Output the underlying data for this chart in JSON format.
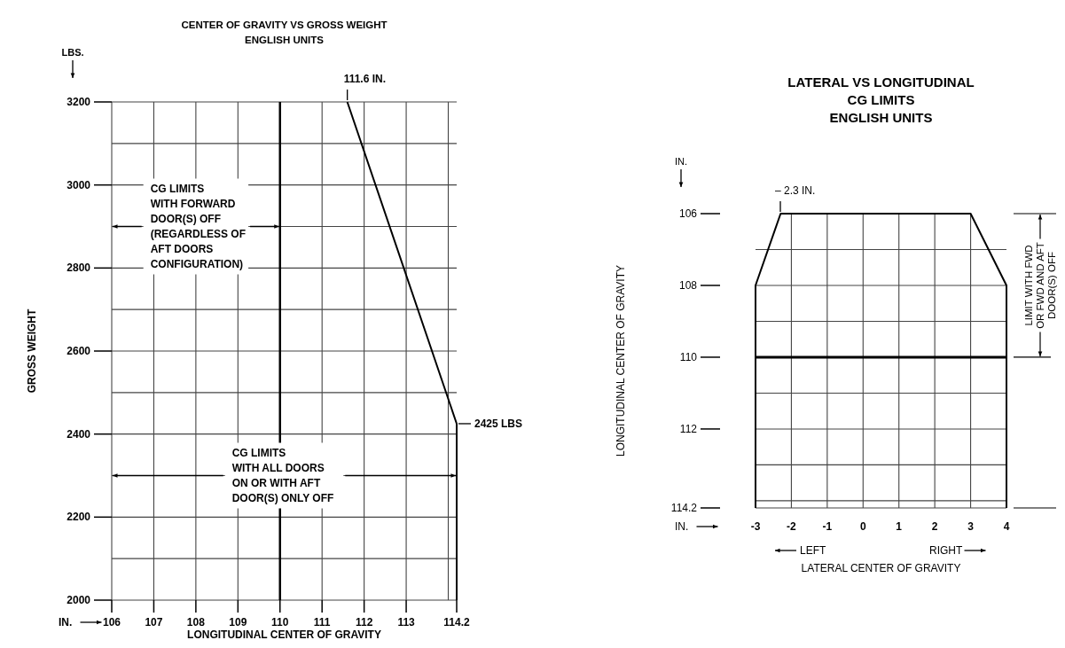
{
  "chart_data": [
    {
      "type": "line",
      "title": "CENTER OF GRAVITY VS GROSS WEIGHT",
      "subtitle": "ENGLISH UNITS",
      "xlabel": "LONGITUDINAL CENTER OF GRAVITY",
      "ylabel": "GROSS WEIGHT",
      "xlim": [
        106,
        114.2
      ],
      "xticks": [
        106,
        107,
        108,
        109,
        110,
        111,
        112,
        113,
        {
          "value": 114,
          "label": null
        },
        114.2
      ],
      "ylim": [
        2000,
        3200
      ],
      "yticks": [
        2000,
        {
          "value": 2100,
          "label": null
        },
        2200,
        {
          "value": 2300,
          "label": null
        },
        2400,
        {
          "value": 2500,
          "label": null
        },
        2600,
        {
          "value": 2700,
          "label": null
        },
        2800,
        {
          "value": 2900,
          "label": null
        },
        3000,
        {
          "value": 3100,
          "label": null
        },
        3200
      ],
      "grid": true,
      "line_style": "solid",
      "series": [
        {
          "color": "#000000",
          "x": [
            111.6,
            114.2,
            114.2
          ],
          "values": [
            3200,
            2425,
            2000
          ]
        }
      ],
      "ref_lines": [
        {
          "axis": "x",
          "value": 110,
          "color": "#000000"
        }
      ],
      "annotations": [
        {
          "text": "111.6 IN.",
          "x": 111.6,
          "y": 3200
        },
        {
          "text": "2425 LBS",
          "x": 114.2,
          "y": 2425
        },
        "LBS.",
        "IN.",
        {
          "text": "CG LIMITS\nWITH FORWARD\nDOOR(S) OFF\n(REGARDLESS OF\nAFT DOORS\nCONFIGURATION)",
          "x": 110,
          "y": 2900
        },
        {
          "text": "CG LIMITS\nWITH ALL DOORS\nON OR WITH AFT\nDOOR(S) ONLY OFF",
          "x": 114.2,
          "y": 2300
        }
      ]
    },
    {
      "type": "line",
      "title": "LATERAL VS LONGITUDINAL\nCG LIMITS",
      "subtitle": "ENGLISH UNITS",
      "xlabel": "LATERAL CENTER OF GRAVITY",
      "ylabel": "LONGITUDINAL CENTER OF GRAVITY",
      "xlim": [
        -3,
        4
      ],
      "xticks": [
        -3,
        -2,
        -1,
        0,
        1,
        2,
        3,
        4
      ],
      "ylim": [
        114.2,
        106
      ],
      "yticks": [
        106,
        {
          "value": 107,
          "label": null
        },
        108,
        {
          "value": 109,
          "label": null
        },
        110,
        {
          "value": 111,
          "label": null
        },
        112,
        {
          "value": 113,
          "label": null
        },
        {
          "value": 114,
          "label": null
        },
        114.2
      ],
      "grid": true,
      "line_style": "solid",
      "series": [
        {
          "color": "#000000",
          "x": [
            -3,
            -3,
            -2.3,
            3,
            4,
            4
          ],
          "values": [
            114.2,
            108,
            106,
            106,
            108,
            114.2
          ]
        }
      ],
      "ref_lines": [
        {
          "axis": "y",
          "value": 110,
          "color": "#000000"
        }
      ],
      "annotations": [
        "– 2.3 IN.",
        "IN.",
        "IN.",
        "LEFT",
        "RIGHT",
        "LIMIT WITH FWD\nOR FWD AND AFT\nDOOR(S) OFF"
      ]
    }
  ]
}
